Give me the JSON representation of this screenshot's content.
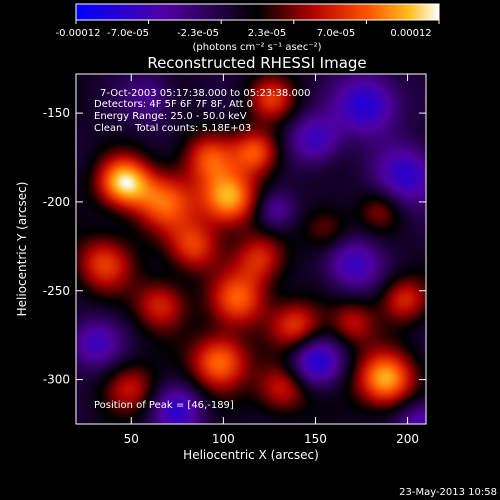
{
  "chart_data": {
    "type": "heatmap",
    "title": "Reconstructed RHESSI Image",
    "xlabel": "Heliocentric X (arcsec)",
    "ylabel": "Heliocentric Y (arcsec)",
    "xlim": [
      20,
      210
    ],
    "ylim": [
      -325,
      -128
    ],
    "x_ticks": [
      50,
      100,
      150,
      200
    ],
    "y_ticks": [
      -150,
      -200,
      -250,
      -300
    ],
    "x_tick_labels": [
      "50",
      "100",
      "150",
      "200"
    ],
    "y_tick_labels": [
      "-150",
      "-200",
      "-250",
      "-300"
    ],
    "colorbar": {
      "tick_labels": [
        "-0.00012",
        "-7.0e-05",
        "-2.3e-05",
        "2.3e-05",
        "7.0e-05",
        "0.00012"
      ],
      "range": [
        -0.00012,
        0.00012
      ],
      "units_label": "(photons cm⁻² s⁻¹ asec⁻²)"
    },
    "annotations": [
      "7-Oct-2003 05:17:38.000 to 05:23:38.000",
      "Detectors: 4F 5F 6F 7F 8F, Att 0",
      "Energy Range: 25.0 - 50.0 keV",
      "Clean    Total counts: 5.18E+03"
    ],
    "peak_label": "Position of Peak = [46,-189]",
    "peak": [
      46,
      -189
    ],
    "blobs": [
      {
        "x": 46,
        "y": -189,
        "a": 1.0,
        "s": 10
      },
      {
        "x": 68,
        "y": -200,
        "a": 0.7,
        "s": 12
      },
      {
        "x": 103,
        "y": -198,
        "a": 0.95,
        "s": 11
      },
      {
        "x": 92,
        "y": -175,
        "a": 0.6,
        "s": 10
      },
      {
        "x": 118,
        "y": -172,
        "a": 0.7,
        "s": 9
      },
      {
        "x": 126,
        "y": -142,
        "a": 0.55,
        "s": 9
      },
      {
        "x": 35,
        "y": -235,
        "a": 0.6,
        "s": 11
      },
      {
        "x": 84,
        "y": -225,
        "a": 0.6,
        "s": 10
      },
      {
        "x": 120,
        "y": -232,
        "a": 0.55,
        "s": 10
      },
      {
        "x": 108,
        "y": -255,
        "a": 0.7,
        "s": 11
      },
      {
        "x": 66,
        "y": -258,
        "a": 0.55,
        "s": 10
      },
      {
        "x": 140,
        "y": -270,
        "a": 0.6,
        "s": 10
      },
      {
        "x": 98,
        "y": -290,
        "a": 0.8,
        "s": 11
      },
      {
        "x": 132,
        "y": -305,
        "a": 0.55,
        "s": 10
      },
      {
        "x": 188,
        "y": -300,
        "a": 0.95,
        "s": 11
      },
      {
        "x": 198,
        "y": -255,
        "a": 0.55,
        "s": 9
      },
      {
        "x": 170,
        "y": -268,
        "a": 0.45,
        "s": 9
      },
      {
        "x": 50,
        "y": -305,
        "a": 0.45,
        "s": 10
      },
      {
        "x": 156,
        "y": -215,
        "a": 0.35,
        "s": 9
      },
      {
        "x": 185,
        "y": -205,
        "a": 0.3,
        "s": 8
      },
      {
        "x": 178,
        "y": -145,
        "a": -0.7,
        "s": 12
      },
      {
        "x": 200,
        "y": -185,
        "a": -0.6,
        "s": 12
      },
      {
        "x": 150,
        "y": -165,
        "a": -0.55,
        "s": 10
      },
      {
        "x": 170,
        "y": -235,
        "a": -0.55,
        "s": 11
      },
      {
        "x": 150,
        "y": -290,
        "a": -0.7,
        "s": 10
      },
      {
        "x": 75,
        "y": -318,
        "a": -0.55,
        "s": 10
      },
      {
        "x": 30,
        "y": -280,
        "a": -0.5,
        "s": 10
      },
      {
        "x": 208,
        "y": -325,
        "a": -0.5,
        "s": 10
      },
      {
        "x": 128,
        "y": -205,
        "a": -0.45,
        "s": 8
      },
      {
        "x": 60,
        "y": -142,
        "a": -0.35,
        "s": 10
      }
    ]
  },
  "footer": {
    "timestamp": "23-May-2013 10:58"
  }
}
